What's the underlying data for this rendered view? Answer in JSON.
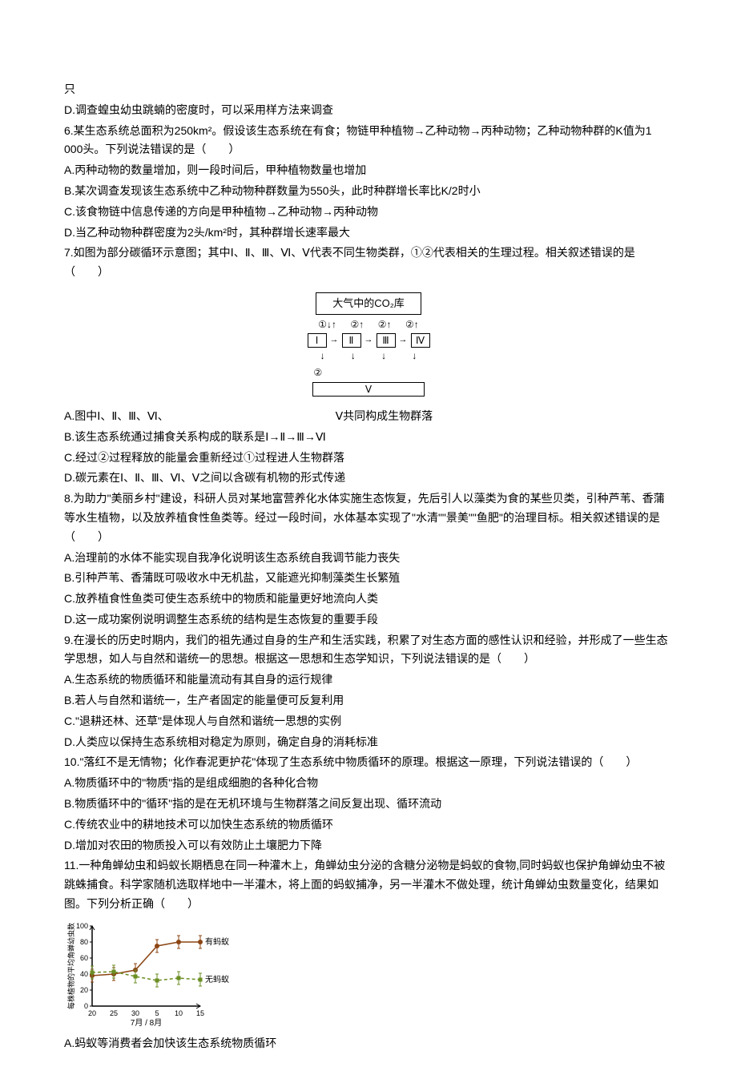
{
  "q5_continuation": {
    "text": "只",
    "option_d": "D.调查蝗虫幼虫跳蝻的密度时，可以采用样方法来调查"
  },
  "q6": {
    "stem": "6.某生态系统总面积为250km²。假设该生态系统在有食；物链甲种植物→乙种动物→丙种动物；乙种动物种群的K值为1 000头。下列说法错误的是（　　）",
    "option_a": "A.丙种动物的数量增加，则一段时间后，甲种植物数量也增加",
    "option_b": "B.某次调查发现该生态系统中乙种动物种群数量为550头，此时种群增长率比K/2时小",
    "option_c": "C.该食物链中信息传递的方向是甲种植物→乙种动物→丙种动物",
    "option_d": "D.当乙种动物种群密度为2头/km²时，其种群增长速率最大"
  },
  "q7": {
    "stem": "7.如图为部分碳循环示意图；其中Ⅰ、Ⅱ、Ⅲ、Ⅵ、Ⅴ代表不同生物类群，①②代表相关的生理过程。相关叙述错误的是（　　）",
    "diagram": {
      "title": "大气中的CO₂库",
      "process_labels": [
        "①",
        "②",
        "②",
        "②"
      ],
      "organisms": [
        "Ⅰ",
        "Ⅱ",
        "Ⅲ",
        "Ⅳ"
      ],
      "bottom_process": "②",
      "bottom_organism": "Ⅴ"
    },
    "option_a_left": "A.图中Ⅰ、Ⅱ、Ⅲ、Ⅵ、",
    "option_a_right": "Ⅴ共同构成生物群落",
    "option_b": "B.该生态系统通过捕食关系构成的联系是Ⅰ→Ⅱ→Ⅲ→Ⅵ",
    "option_c": "C.经过②过程释放的能量会重新经过①过程进人生物群落",
    "option_d": "D.碳元素在Ⅰ、Ⅱ、Ⅲ、Ⅵ、Ⅴ之间以含碳有机物的形式传递"
  },
  "q8": {
    "stem": "8.为助力\"美丽乡村\"建设，科研人员对某地富营养化水体实施生态恢复，先后引人以藻类为食的某些贝类，引种芦苇、香蒲等水生植物，以及放养植食性鱼类等。经过一段时间，水体基本实现了\"水清\"\"景美\"\"鱼肥\"的治理目标。相关叙述错误的是（　　）",
    "option_a": "A.治理前的水体不能实现自我净化说明该生态系统自我调节能力丧失",
    "option_b": "B.引种芦苇、香蒲既可吸收水中无机盐，又能遮光抑制藻类生长繁殖",
    "option_c": "C.放养植食性鱼类可使生态系统中的物质和能量更好地流向人类",
    "option_d": "D.这一成功案例说明调整生态系统的结构是生态恢复的重要手段"
  },
  "q9": {
    "stem": "9.在漫长的历史时期内，我们的祖先通过自身的生产和生活实践，积累了对生态方面的感性认识和经验，并形成了一些生态学思想，如人与自然和谐统一的思想。根据这一思想和生态学知识，下列说法错误的是（　　）",
    "option_a": "A.生态系统的物质循环和能量流动有其自身的运行规律",
    "option_b": "B.若人与自然和谐统一，生产者固定的能量便可反复利用",
    "option_c": "C.\"退耕还林、还草\"是体现人与自然和谐统一思想的实例",
    "option_d": "D.人类应以保持生态系统相对稳定为原则，确定自身的消耗标准"
  },
  "q10": {
    "stem": "10.\"落红不是无情物；化作春泥更护花\"体现了生态系统中物质循环的原理。根据这一原理，下列说法错误的（　　）",
    "option_a": "A.物质循环中的\"物质\"指的是组成细胞的各种化合物",
    "option_b": "B.物质循环中的\"循环\"指的是在无机环境与生物群落之间反复出现、循环流动",
    "option_c": "C.传统农业中的耕地技术可以加快生态系统的物质循环",
    "option_d": "D.增加对农田的物质投入可以有效防止土壤肥力下降"
  },
  "q11": {
    "stem": "11.一种角蝉幼虫和蚂蚁长期栖息在同一种灌木上，角蝉幼虫分泌的含糖分泌物是蚂蚁的食物,同时蚂蚁也保护角蝉幼虫不被跳蛛捕食。科学家随机选取样地中一半灌木，将上面的蚂蚁捕净，另一半灌木不做处理，统计角蝉幼虫数量变化，结果如图。下列分析正确（　　）",
    "chart": {
      "type": "line",
      "y_label": "每株植物的平均角蝉幼虫数",
      "y_max": 100,
      "y_ticks": [
        0,
        20,
        40,
        60,
        80,
        100
      ],
      "x_label": "7月 / 8月",
      "x_ticks": [
        "20",
        "25",
        "30",
        "5",
        "10",
        "15"
      ],
      "series": [
        {
          "name": "有蚂蚁",
          "color": "#8B4513",
          "marker": "circle",
          "dash": "solid",
          "points": [
            [
              0,
              38
            ],
            [
              1,
              40
            ],
            [
              2,
              45
            ],
            [
              3,
              75
            ],
            [
              4,
              80
            ],
            [
              5,
              80
            ]
          ]
        },
        {
          "name": "无蚂蚁",
          "color": "#6B8E23",
          "marker": "square",
          "dash": "dashed",
          "points": [
            [
              0,
              42
            ],
            [
              1,
              43
            ],
            [
              2,
              37
            ],
            [
              3,
              32
            ],
            [
              4,
              35
            ],
            [
              5,
              33
            ]
          ]
        }
      ],
      "error_bar_size": 8,
      "background_color": "#ffffff",
      "axis_color": "#000000"
    },
    "option_a": "A.蚂蚁等消费者会加快该生态系统物质循环"
  }
}
